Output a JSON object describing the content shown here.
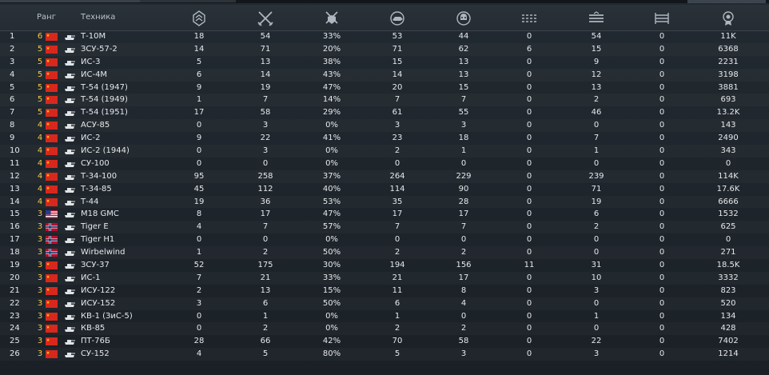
{
  "header": {
    "rank_label": "Ранг",
    "vehicle_label": "Техника",
    "icons": [
      "rank-chevrons-icon",
      "crossed-swords-icon",
      "sword-shield-icon",
      "dog-tank-icon",
      "skull-icon",
      "bars-icon",
      "bars-double-icon",
      "railway-icon",
      "medal-icon"
    ]
  },
  "colors": {
    "rank": "#f2c94c",
    "text": "#e6e9ec",
    "header_text": "#b9c2ca"
  },
  "rows": [
    {
      "idx": "1",
      "rank": "6",
      "flag": "china",
      "name": "Т-10М",
      "v1": "18",
      "v2": "54",
      "v3": "33%",
      "v4": "53",
      "v5": "44",
      "v6": "0",
      "v7": "54",
      "v8": "0",
      "v9": "11K"
    },
    {
      "idx": "2",
      "rank": "5",
      "flag": "china",
      "name": "ЗСУ-57-2",
      "v1": "14",
      "v2": "71",
      "v3": "20%",
      "v4": "71",
      "v5": "62",
      "v6": "6",
      "v7": "15",
      "v8": "0",
      "v9": "6368"
    },
    {
      "idx": "3",
      "rank": "5",
      "flag": "china",
      "name": "ИС-3",
      "v1": "5",
      "v2": "13",
      "v3": "38%",
      "v4": "15",
      "v5": "13",
      "v6": "0",
      "v7": "9",
      "v8": "0",
      "v9": "2231"
    },
    {
      "idx": "4",
      "rank": "5",
      "flag": "china",
      "name": "ИС-4М",
      "v1": "6",
      "v2": "14",
      "v3": "43%",
      "v4": "14",
      "v5": "13",
      "v6": "0",
      "v7": "12",
      "v8": "0",
      "v9": "3198"
    },
    {
      "idx": "5",
      "rank": "5",
      "flag": "china",
      "name": "Т-54 (1947)",
      "v1": "9",
      "v2": "19",
      "v3": "47%",
      "v4": "20",
      "v5": "15",
      "v6": "0",
      "v7": "13",
      "v8": "0",
      "v9": "3881"
    },
    {
      "idx": "6",
      "rank": "5",
      "flag": "china",
      "name": "Т-54 (1949)",
      "v1": "1",
      "v2": "7",
      "v3": "14%",
      "v4": "7",
      "v5": "7",
      "v6": "0",
      "v7": "2",
      "v8": "0",
      "v9": "693"
    },
    {
      "idx": "7",
      "rank": "5",
      "flag": "china",
      "name": "Т-54 (1951)",
      "v1": "17",
      "v2": "58",
      "v3": "29%",
      "v4": "61",
      "v5": "55",
      "v6": "0",
      "v7": "46",
      "v8": "0",
      "v9": "13.2K"
    },
    {
      "idx": "8",
      "rank": "4",
      "flag": "china",
      "name": "АСУ-85",
      "v1": "0",
      "v2": "3",
      "v3": "0%",
      "v4": "3",
      "v5": "3",
      "v6": "0",
      "v7": "0",
      "v8": "0",
      "v9": "143"
    },
    {
      "idx": "9",
      "rank": "4",
      "flag": "china",
      "name": "ИС-2",
      "v1": "9",
      "v2": "22",
      "v3": "41%",
      "v4": "23",
      "v5": "18",
      "v6": "0",
      "v7": "7",
      "v8": "0",
      "v9": "2490"
    },
    {
      "idx": "10",
      "rank": "4",
      "flag": "china",
      "name": "ИС-2 (1944)",
      "v1": "0",
      "v2": "3",
      "v3": "0%",
      "v4": "2",
      "v5": "1",
      "v6": "0",
      "v7": "1",
      "v8": "0",
      "v9": "343"
    },
    {
      "idx": "11",
      "rank": "4",
      "flag": "china",
      "name": "СУ-100",
      "v1": "0",
      "v2": "0",
      "v3": "0%",
      "v4": "0",
      "v5": "0",
      "v6": "0",
      "v7": "0",
      "v8": "0",
      "v9": "0"
    },
    {
      "idx": "12",
      "rank": "4",
      "flag": "china",
      "name": "Т-34-100",
      "v1": "95",
      "v2": "258",
      "v3": "37%",
      "v4": "264",
      "v5": "229",
      "v6": "0",
      "v7": "239",
      "v8": "0",
      "v9": "114K"
    },
    {
      "idx": "13",
      "rank": "4",
      "flag": "china",
      "name": "Т-34-85",
      "v1": "45",
      "v2": "112",
      "v3": "40%",
      "v4": "114",
      "v5": "90",
      "v6": "0",
      "v7": "71",
      "v8": "0",
      "v9": "17.6K"
    },
    {
      "idx": "14",
      "rank": "4",
      "flag": "china",
      "name": "Т-44",
      "v1": "19",
      "v2": "36",
      "v3": "53%",
      "v4": "35",
      "v5": "28",
      "v6": "0",
      "v7": "19",
      "v8": "0",
      "v9": "6666"
    },
    {
      "idx": "15",
      "rank": "3",
      "flag": "usa",
      "name": "M18 GMC",
      "v1": "8",
      "v2": "17",
      "v3": "47%",
      "v4": "17",
      "v5": "17",
      "v6": "0",
      "v7": "6",
      "v8": "0",
      "v9": "1532"
    },
    {
      "idx": "16",
      "rank": "3",
      "flag": "norway",
      "name": "Tiger E",
      "v1": "4",
      "v2": "7",
      "v3": "57%",
      "v4": "7",
      "v5": "7",
      "v6": "0",
      "v7": "2",
      "v8": "0",
      "v9": "625"
    },
    {
      "idx": "17",
      "rank": "3",
      "flag": "norway",
      "name": "Tiger H1",
      "v1": "0",
      "v2": "0",
      "v3": "0%",
      "v4": "0",
      "v5": "0",
      "v6": "0",
      "v7": "0",
      "v8": "0",
      "v9": "0"
    },
    {
      "idx": "18",
      "rank": "3",
      "flag": "norway",
      "name": "Wirbelwind",
      "v1": "1",
      "v2": "2",
      "v3": "50%",
      "v4": "2",
      "v5": "2",
      "v6": "0",
      "v7": "0",
      "v8": "0",
      "v9": "271"
    },
    {
      "idx": "19",
      "rank": "3",
      "flag": "china",
      "name": "ЗСУ-37",
      "v1": "52",
      "v2": "175",
      "v3": "30%",
      "v4": "194",
      "v5": "156",
      "v6": "11",
      "v7": "31",
      "v8": "0",
      "v9": "18.5K"
    },
    {
      "idx": "20",
      "rank": "3",
      "flag": "china",
      "name": "ИС-1",
      "v1": "7",
      "v2": "21",
      "v3": "33%",
      "v4": "21",
      "v5": "17",
      "v6": "0",
      "v7": "10",
      "v8": "0",
      "v9": "3332"
    },
    {
      "idx": "21",
      "rank": "3",
      "flag": "china",
      "name": "ИСУ-122",
      "v1": "2",
      "v2": "13",
      "v3": "15%",
      "v4": "11",
      "v5": "8",
      "v6": "0",
      "v7": "3",
      "v8": "0",
      "v9": "823"
    },
    {
      "idx": "22",
      "rank": "3",
      "flag": "china",
      "name": "ИСУ-152",
      "v1": "3",
      "v2": "6",
      "v3": "50%",
      "v4": "6",
      "v5": "4",
      "v6": "0",
      "v7": "0",
      "v8": "0",
      "v9": "520"
    },
    {
      "idx": "23",
      "rank": "3",
      "flag": "china",
      "name": "КВ-1 (ЗиС-5)",
      "v1": "0",
      "v2": "1",
      "v3": "0%",
      "v4": "1",
      "v5": "0",
      "v6": "0",
      "v7": "1",
      "v8": "0",
      "v9": "134"
    },
    {
      "idx": "24",
      "rank": "3",
      "flag": "china",
      "name": "КВ-85",
      "v1": "0",
      "v2": "2",
      "v3": "0%",
      "v4": "2",
      "v5": "2",
      "v6": "0",
      "v7": "0",
      "v8": "0",
      "v9": "428"
    },
    {
      "idx": "25",
      "rank": "3",
      "flag": "china",
      "name": "ПТ-76Б",
      "v1": "28",
      "v2": "66",
      "v3": "42%",
      "v4": "70",
      "v5": "58",
      "v6": "0",
      "v7": "22",
      "v8": "0",
      "v9": "7402"
    },
    {
      "idx": "26",
      "rank": "3",
      "flag": "china",
      "name": "СУ-152",
      "v1": "4",
      "v2": "5",
      "v3": "80%",
      "v4": "5",
      "v5": "3",
      "v6": "0",
      "v7": "3",
      "v8": "0",
      "v9": "1214"
    }
  ]
}
